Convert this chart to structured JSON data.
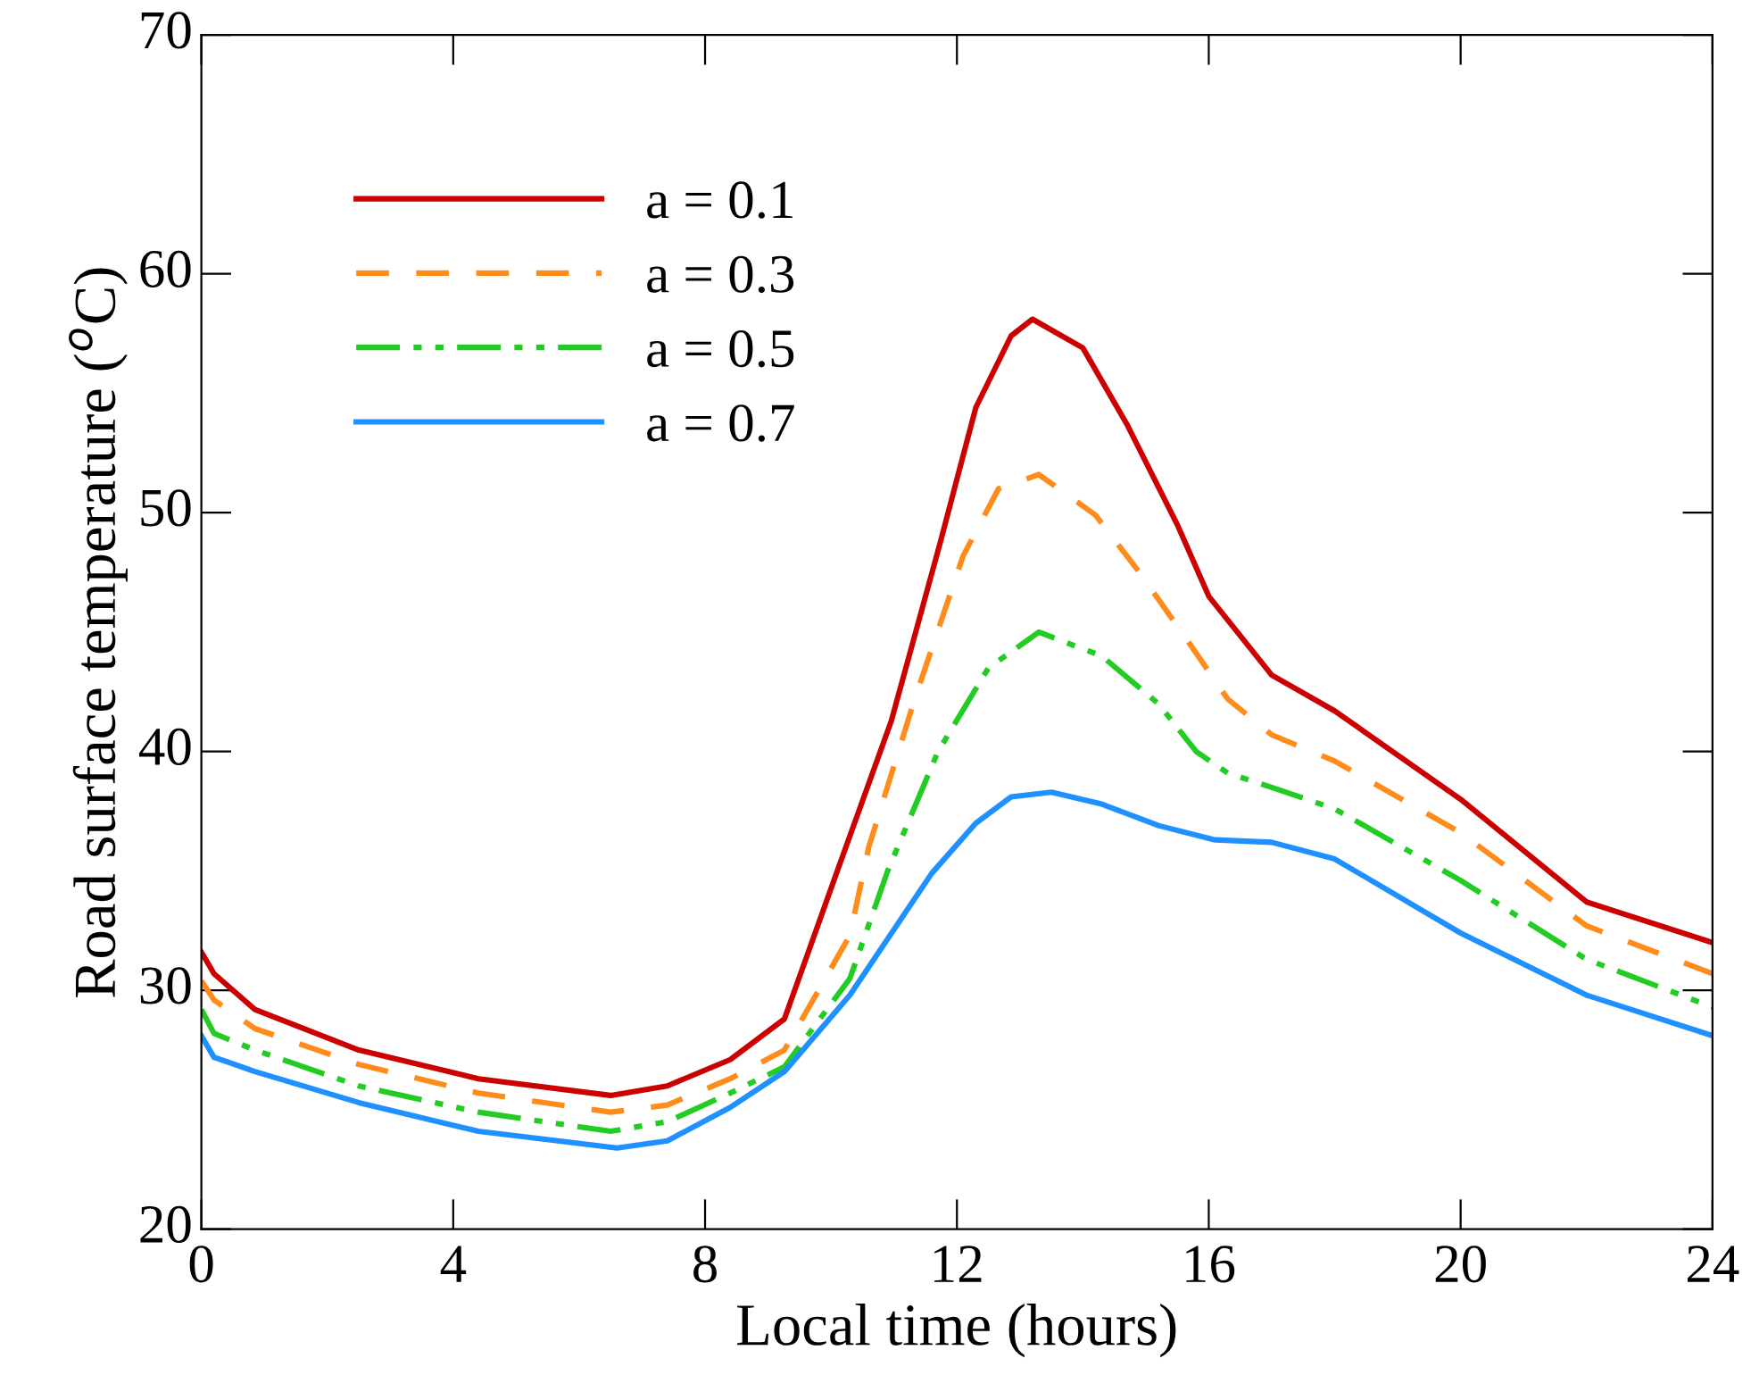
{
  "chart_data": {
    "type": "line",
    "xlabel": "Local time (hours)",
    "ylabel": "Road surface temperature ($^{o}$C)",
    "xlim": [
      0,
      24
    ],
    "xticks": [
      0,
      4,
      8,
      12,
      16,
      20,
      24
    ],
    "ylim": [
      20,
      70
    ],
    "yticks": [
      20,
      30,
      40,
      50,
      60,
      70
    ],
    "grid": false,
    "legend": "top left",
    "marker": "none",
    "series": [
      {
        "name": "a = 0.1",
        "color": "#cc0000",
        "line_style": "solid",
        "x": [
          0,
          0.2,
          0.85,
          2.5,
          4.4,
          6.5,
          7.4,
          8.4,
          9.26,
          10.1,
          10.96,
          11.73,
          12.3,
          12.86,
          13.2,
          14.0,
          14.7,
          15.5,
          16.0,
          17,
          18,
          20,
          22,
          24
        ],
        "values": [
          31.6,
          30.7,
          29.2,
          27.5,
          26.3,
          25.6,
          26.0,
          27.1,
          28.8,
          35.0,
          41.3,
          48.7,
          54.4,
          57.4,
          58.1,
          56.9,
          53.7,
          49.5,
          46.5,
          43.2,
          41.7,
          38.0,
          33.7,
          32.0
        ]
      },
      {
        "name": "a = 0.3",
        "color": "#ff8c1a",
        "line_style": "dashed",
        "x": [
          0,
          0.2,
          0.85,
          2.5,
          4.4,
          6.5,
          7.4,
          8.4,
          9.26,
          10.3,
          10.6,
          11.33,
          12.1,
          12.66,
          13.3,
          14.2,
          14.9,
          15.7,
          16.3,
          17,
          18,
          20,
          22,
          24
        ],
        "values": [
          30.4,
          29.6,
          28.4,
          26.9,
          25.7,
          24.9,
          25.2,
          26.3,
          27.5,
          32.3,
          36.0,
          42.2,
          48.2,
          51.0,
          51.6,
          49.9,
          47.5,
          44.5,
          42.2,
          40.7,
          39.6,
          36.6,
          32.7,
          30.7
        ]
      },
      {
        "name": "a = 0.5",
        "color": "#22cc22",
        "line_style": "dashdotdot",
        "x": [
          0,
          0.2,
          0.85,
          2.5,
          4.4,
          6.5,
          7.4,
          8.4,
          9.26,
          10.3,
          10.9,
          11.7,
          12.5,
          13.3,
          14.3,
          15.2,
          15.8,
          16.3,
          17,
          18,
          20,
          22,
          24
        ],
        "values": [
          29.2,
          28.2,
          27.5,
          26.0,
          24.9,
          24.1,
          24.5,
          25.7,
          26.8,
          30.5,
          35.0,
          40.0,
          43.5,
          45.0,
          44.0,
          42.0,
          40.0,
          39.1,
          38.5,
          37.6,
          34.6,
          31.3,
          29.3
        ]
      },
      {
        "name": "a = 0.7",
        "color": "#1e90ff",
        "line_style": "solid",
        "x": [
          0,
          0.2,
          0.85,
          2.5,
          4.4,
          6.6,
          7.4,
          8.4,
          9.26,
          10.3,
          11.6,
          12.3,
          12.86,
          13.5,
          14.3,
          15.2,
          16.1,
          17,
          18,
          20,
          22,
          24
        ],
        "values": [
          28.1,
          27.2,
          26.6,
          25.3,
          24.1,
          23.4,
          23.7,
          25.1,
          26.6,
          29.8,
          34.9,
          37.0,
          38.1,
          38.3,
          37.8,
          36.9,
          36.3,
          36.2,
          35.5,
          32.4,
          29.8,
          28.1
        ]
      }
    ]
  }
}
